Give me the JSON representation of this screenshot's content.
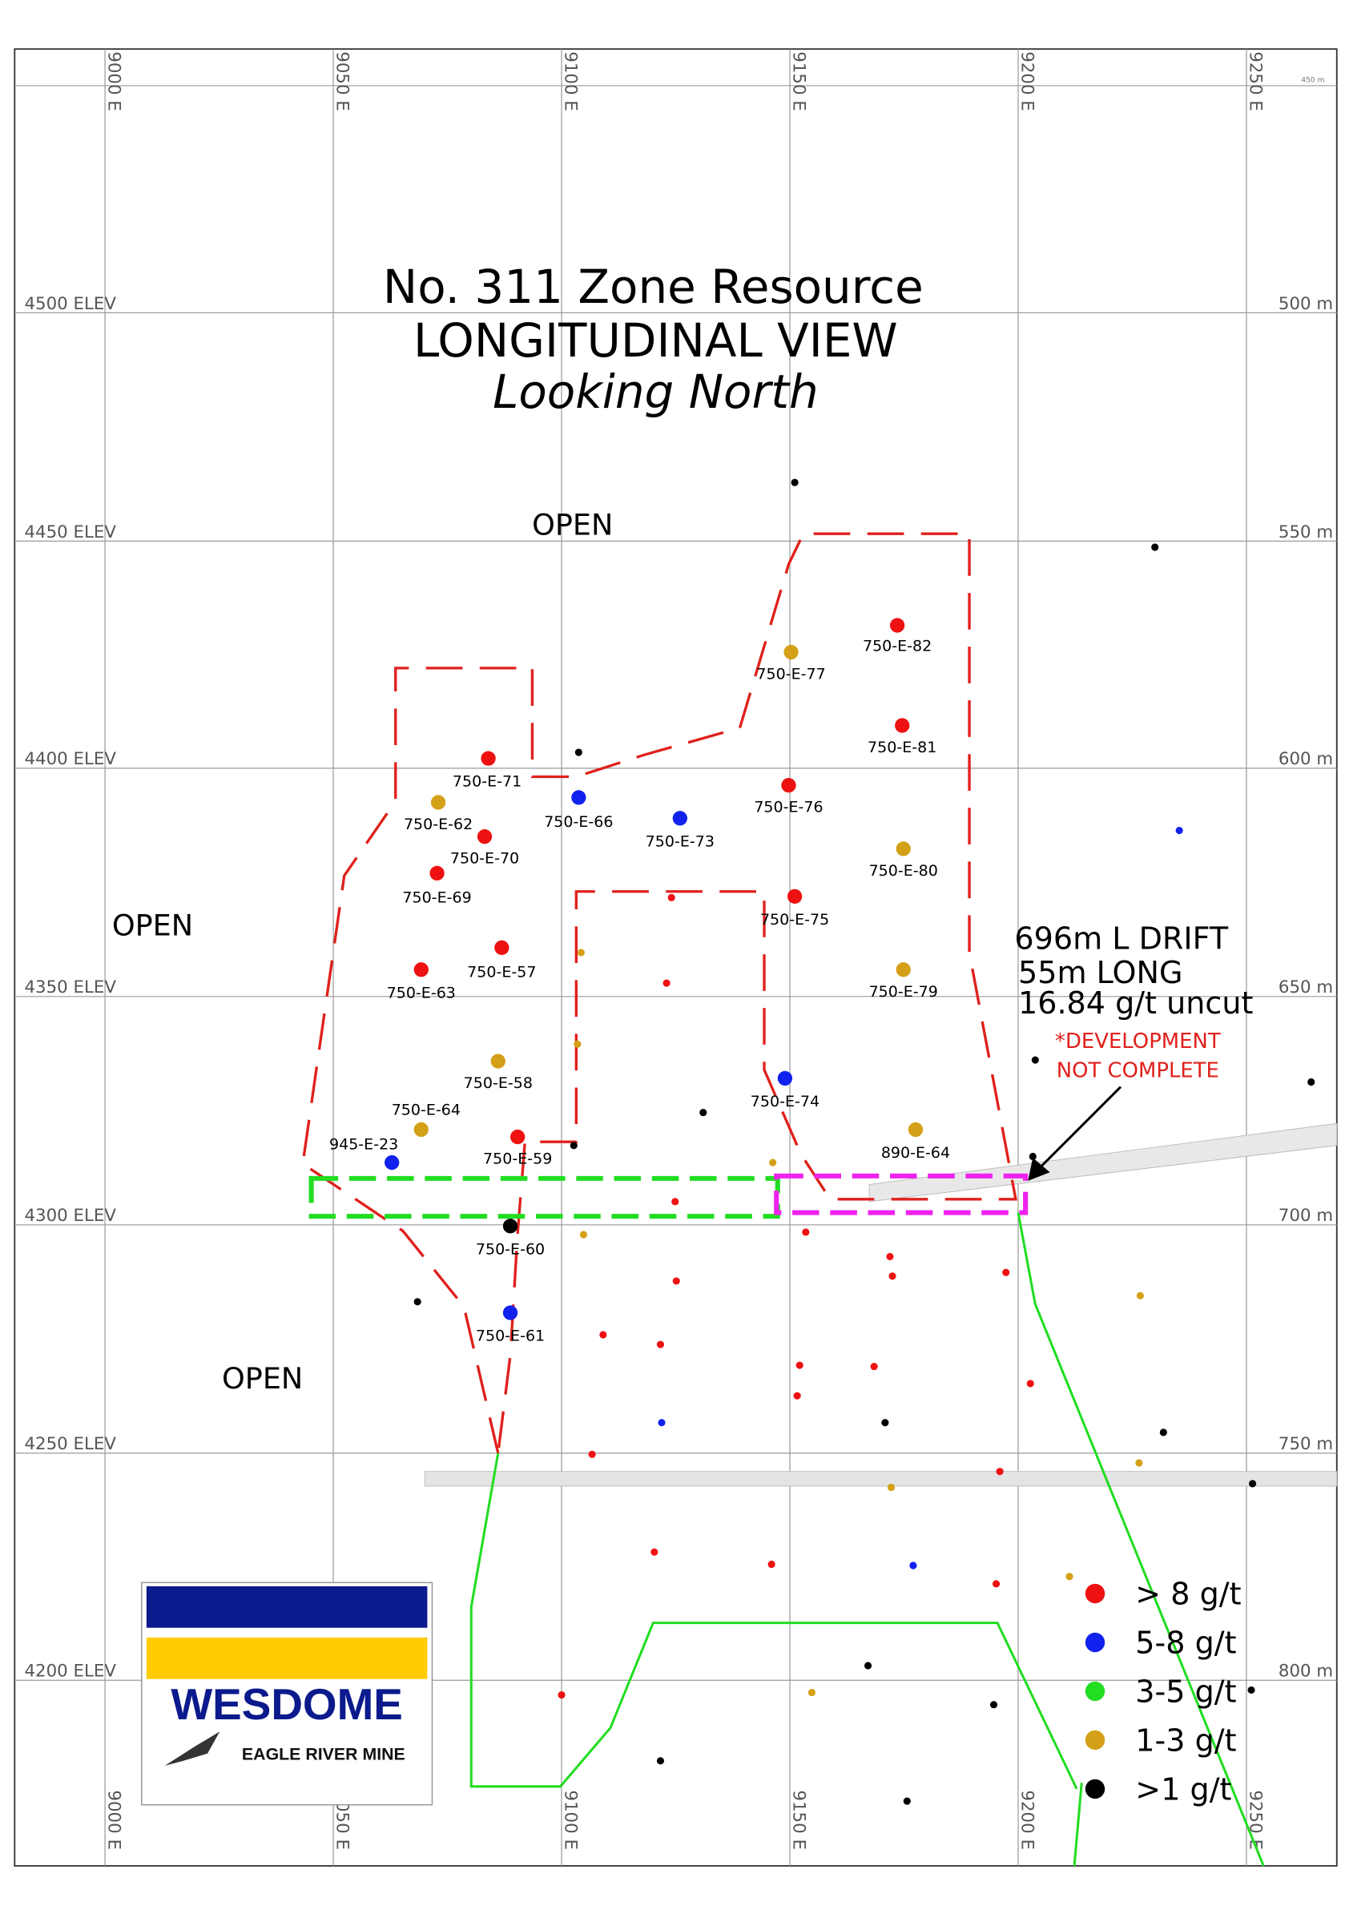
{
  "title": {
    "line1": "No. 311 Zone Resource",
    "line2": "LONGITUDINAL VIEW",
    "line3": "Looking North"
  },
  "scale_note": "450 m",
  "eastings": [
    "9000 E",
    "9050 E",
    "9100 E",
    "9150 E",
    "9200 E",
    "9250 E"
  ],
  "elevations": [
    "4500 ELEV",
    "4450 ELEV",
    "4400 ELEV",
    "4350 ELEV",
    "4300 ELEV",
    "4250 ELEV",
    "4200 ELEV"
  ],
  "depths": [
    "500 m",
    "550 m",
    "600 m",
    "650 m",
    "700 m",
    "750 m",
    "800 m"
  ],
  "open_labels": [
    "OPEN",
    "OPEN",
    "OPEN"
  ],
  "samples": [
    "750-E-82",
    "750-E-77",
    "750-E-81",
    "750-E-71",
    "750-E-76",
    "750-E-66",
    "750-E-62",
    "750-E-73",
    "750-E-70",
    "750-E-80",
    "750-E-69",
    "750-E-75",
    "750-E-57",
    "750-E-63",
    "750-E-79",
    "750-E-58",
    "750-E-74",
    "750-E-64",
    "890-E-64",
    "945-E-23",
    "750-E-59",
    "750-E-60",
    "750-E-61"
  ],
  "drift": {
    "lines": [
      "696m L DRIFT",
      "55m LONG",
      "16.84 g/t uncut"
    ],
    "note": [
      "*DEVELOPMENT",
      "NOT COMPLETE"
    ]
  },
  "legend": [
    "> 8 g/t",
    "5-8 g/t",
    "3-5 g/t",
    "1-3 g/t",
    ">1 g/t"
  ],
  "logo": {
    "name": "WESDOME",
    "sub": "EAGLE RIVER MINE"
  }
}
